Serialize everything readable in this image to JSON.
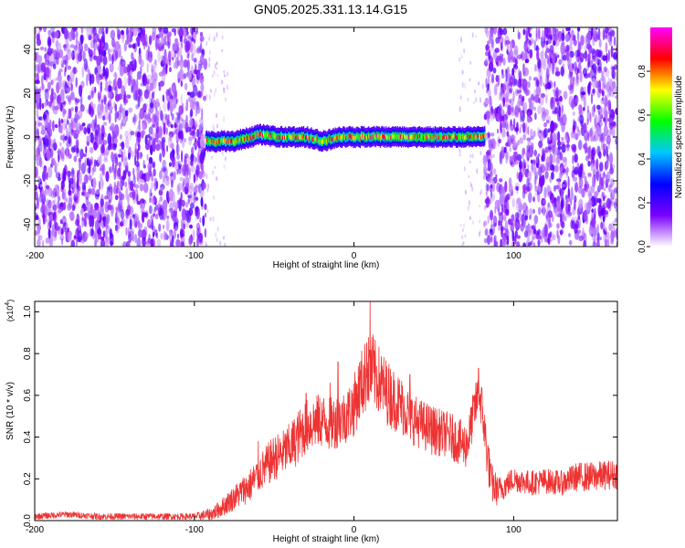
{
  "title": "GN05.2025.331.13.14.G15",
  "chart_data": [
    {
      "type": "heatmap",
      "name": "spectrogram",
      "xlabel": "Height of straight line (km)",
      "ylabel": "Frequency (Hz)",
      "xlim": [
        -200,
        165
      ],
      "ylim": [
        -50,
        50
      ],
      "x_ticks": [
        -200,
        -100,
        0,
        100
      ],
      "y_ticks": [
        40,
        20,
        0,
        -20,
        -40
      ],
      "noise_regions_km": [
        [
          -200,
          -93
        ],
        [
          82,
          165
        ]
      ],
      "quiet_region_km": [
        -93,
        82
      ],
      "signal_band": {
        "x_start": -93,
        "x_end": 82,
        "center_hz": [
          [
            -93,
            -2
          ],
          [
            -75,
            -2
          ],
          [
            -60,
            1
          ],
          [
            -45,
            0
          ],
          [
            -30,
            0
          ],
          [
            -20,
            -2
          ],
          [
            -10,
            0
          ],
          [
            0,
            0
          ],
          [
            20,
            0
          ],
          [
            40,
            0
          ],
          [
            60,
            0
          ],
          [
            82,
            0
          ]
        ],
        "half_width_hz": 2.5,
        "peak_amplitude": 0.9
      },
      "colorbar": {
        "label": "Normalized spectral amplitude",
        "min": 0.0,
        "max": 1.0,
        "ticks": [
          "0.0",
          "0.2",
          "0.4",
          "0.6",
          "0.8"
        ],
        "colors": [
          "#ffffff",
          "#7b00ff",
          "#0000ff",
          "#00c8ff",
          "#00ff00",
          "#ffff00",
          "#ff0000",
          "#ff00ff"
        ]
      }
    },
    {
      "type": "line",
      "name": "snr",
      "xlabel": "Height of straight line (km)",
      "ylabel": "SNR (10 * v/v)",
      "y_exponent_label": "(x10",
      "y_exponent": "4",
      "y_exponent_close": ")",
      "xlim": [
        -200,
        165
      ],
      "ylim": [
        0.0,
        1.05
      ],
      "x_ticks": [
        -200,
        -100,
        0,
        100
      ],
      "y_ticks": [
        "0.0",
        "0.2",
        "0.4",
        "0.6",
        "0.8",
        "1.0"
      ],
      "color": "#ee3333",
      "envelope": {
        "x": [
          -200,
          -180,
          -160,
          -140,
          -120,
          -100,
          -90,
          -85,
          -80,
          -75,
          -70,
          -65,
          -60,
          -55,
          -50,
          -45,
          -40,
          -35,
          -30,
          -25,
          -20,
          -15,
          -10,
          -5,
          0,
          3,
          5,
          8,
          10,
          15,
          20,
          25,
          30,
          35,
          40,
          45,
          50,
          55,
          60,
          65,
          70,
          72,
          75,
          78,
          80,
          83,
          86,
          90,
          95,
          100,
          110,
          120,
          130,
          140,
          150,
          160,
          165
        ],
        "y": [
          0.02,
          0.03,
          0.02,
          0.02,
          0.02,
          0.02,
          0.03,
          0.05,
          0.08,
          0.11,
          0.14,
          0.17,
          0.22,
          0.26,
          0.3,
          0.32,
          0.35,
          0.4,
          0.45,
          0.47,
          0.48,
          0.46,
          0.48,
          0.5,
          0.55,
          0.62,
          0.66,
          0.7,
          0.72,
          0.68,
          0.62,
          0.58,
          0.55,
          0.5,
          0.47,
          0.45,
          0.43,
          0.42,
          0.41,
          0.38,
          0.36,
          0.4,
          0.52,
          0.6,
          0.55,
          0.35,
          0.18,
          0.14,
          0.17,
          0.2,
          0.18,
          0.19,
          0.18,
          0.21,
          0.21,
          0.22,
          0.22
        ],
        "noise_amplitude": [
          0.015,
          0.015,
          0.015,
          0.015,
          0.015,
          0.015,
          0.03,
          0.04,
          0.05,
          0.06,
          0.07,
          0.08,
          0.09,
          0.1,
          0.11,
          0.11,
          0.12,
          0.13,
          0.13,
          0.13,
          0.13,
          0.13,
          0.13,
          0.13,
          0.15,
          0.16,
          0.17,
          0.18,
          0.18,
          0.17,
          0.16,
          0.15,
          0.14,
          0.13,
          0.12,
          0.12,
          0.12,
          0.11,
          0.11,
          0.11,
          0.11,
          0.11,
          0.11,
          0.11,
          0.11,
          0.12,
          0.1,
          0.07,
          0.06,
          0.06,
          0.06,
          0.06,
          0.06,
          0.07,
          0.07,
          0.07,
          0.07
        ],
        "spikes": [
          [
            -60,
            0.38
          ],
          [
            -30,
            0.61
          ],
          [
            -15,
            0.66
          ],
          [
            -10,
            0.76
          ],
          [
            8,
            0.85
          ],
          [
            10,
            1.05
          ],
          [
            12,
            0.89
          ],
          [
            35,
            0.7
          ],
          [
            78,
            0.73
          ]
        ]
      }
    }
  ]
}
